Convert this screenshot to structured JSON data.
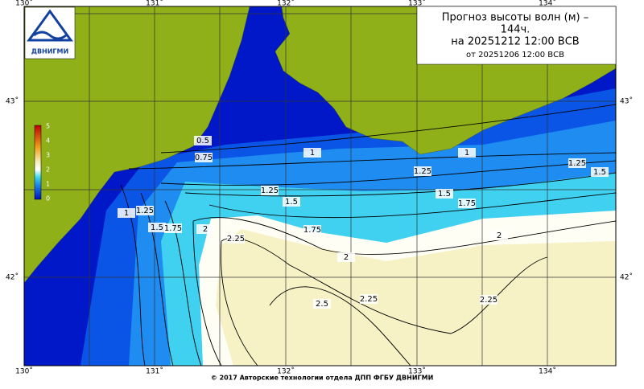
{
  "header": {
    "title_lines": [
      "Прогноз высоты волн (м) –",
      "144ч.",
      "на 20251212 12:00 ВСВ",
      "от 20251206 12:00 ВСВ"
    ],
    "logo_text": "ДВНИГМИ"
  },
  "longitude_labels": [
    "130˚",
    "131˚",
    "132˚",
    "133˚",
    "134˚"
  ],
  "latitude_labels": [
    "43˚",
    "42˚"
  ],
  "colorbar_labels": [
    5,
    4,
    3,
    2,
    1,
    0
  ],
  "contour_labels": [
    0.5,
    0.75,
    1,
    1,
    1,
    1.25,
    1.25,
    1.25,
    1.25,
    1.5,
    1.5,
    1.5,
    1.5,
    1.75,
    1.75,
    1.75,
    2,
    2,
    2,
    2.25,
    2.25,
    2.25,
    2.5
  ],
  "footer": "© 2017 Авторские технологии отдела ДПП ФГБУ ДВНИГМИ"
}
